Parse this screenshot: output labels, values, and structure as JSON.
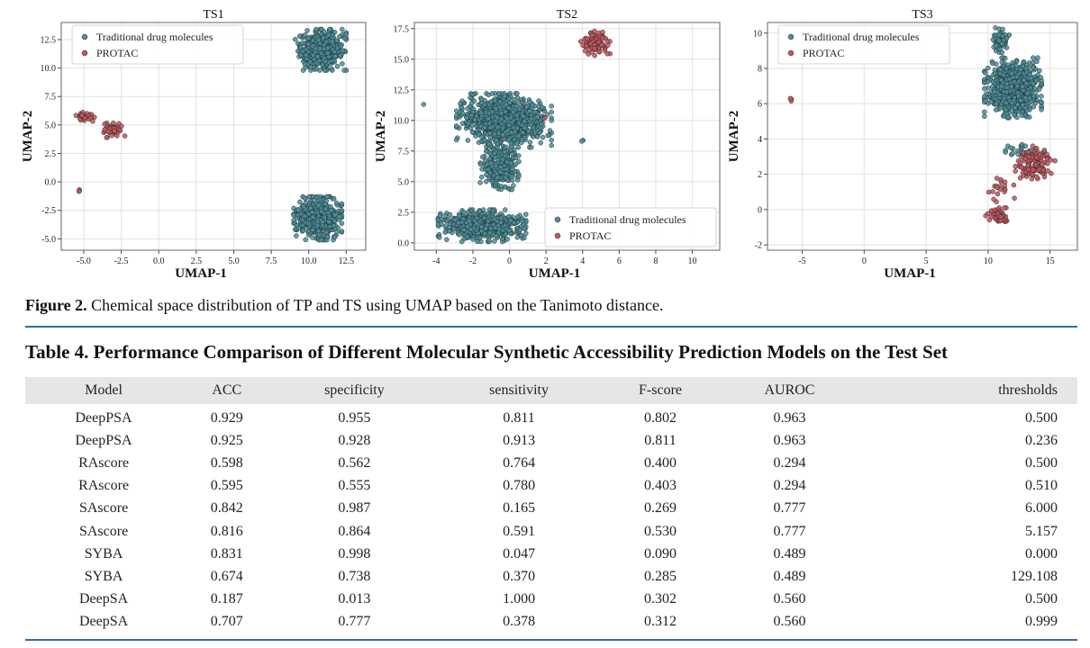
{
  "figure": {
    "caption_label": "Figure 2.",
    "caption_text": " Chemical space distribution of TP and TS using UMAP based on the Tanimoto distance."
  },
  "chart_data": [
    {
      "type": "scatter",
      "title": "TS1",
      "xlabel": "UMAP-1",
      "ylabel": "UMAP-2",
      "xlim": [
        -6.5,
        13.8
      ],
      "ylim": [
        -6.0,
        14.0
      ],
      "xticks": [
        "-5.0",
        "-2.5",
        "0.0",
        "2.5",
        "5.0",
        "7.5",
        "10.0",
        "12.5"
      ],
      "yticks": [
        "-5.0",
        "-2.5",
        "0.0",
        "2.5",
        "5.0",
        "7.5",
        "10.0",
        "12.5"
      ],
      "grid": true,
      "legend_position": "top-left",
      "series": [
        {
          "name": "Traditional drug molecules",
          "color": "#4e8e99",
          "clusters": [
            {
              "cx": 10.8,
              "cy": 11.6,
              "rx": 1.7,
              "ry": 1.8,
              "n": 620
            },
            {
              "cx": 10.6,
              "cy": -3.2,
              "rx": 1.6,
              "ry": 1.9,
              "n": 620
            }
          ]
        },
        {
          "name": "PROTAC",
          "color": "#c9545a",
          "clusters": [
            {
              "cx": -4.9,
              "cy": 5.7,
              "rx": 0.8,
              "ry": 0.5,
              "n": 28
            },
            {
              "cx": -3.0,
              "cy": 4.6,
              "rx": 0.8,
              "ry": 0.7,
              "n": 48
            },
            {
              "cx": -5.3,
              "cy": -0.8,
              "rx": 0.12,
              "ry": 0.15,
              "n": 3
            }
          ]
        }
      ]
    },
    {
      "type": "scatter",
      "title": "TS2",
      "xlabel": "UMAP-1",
      "ylabel": "UMAP-2",
      "xlim": [
        -5.2,
        11.5
      ],
      "ylim": [
        -0.6,
        18.0
      ],
      "xticks": [
        "-4",
        "-2",
        "0",
        "2",
        "4",
        "6",
        "8",
        "10"
      ],
      "yticks": [
        "0.0",
        "2.5",
        "5.0",
        "7.5",
        "10.0",
        "12.5",
        "15.0",
        "17.5"
      ],
      "grid": true,
      "legend_position": "bottom-right",
      "series": [
        {
          "name": "Traditional drug molecules",
          "color": "#4e8e99",
          "clusters": [
            {
              "cx": -0.3,
              "cy": 10.0,
              "rx": 2.6,
              "ry": 2.2,
              "n": 900
            },
            {
              "cx": -0.5,
              "cy": 6.3,
              "rx": 1.1,
              "ry": 2.1,
              "n": 260
            },
            {
              "cx": -1.5,
              "cy": 1.4,
              "rx": 2.4,
              "ry": 1.3,
              "n": 700
            },
            {
              "cx": -4.6,
              "cy": 11.3,
              "rx": 0.1,
              "ry": 0.1,
              "n": 1
            },
            {
              "cx": 4.0,
              "cy": 8.3,
              "rx": 0.12,
              "ry": 0.1,
              "n": 2
            }
          ]
        },
        {
          "name": "PROTAC",
          "color": "#c9545a",
          "clusters": [
            {
              "cx": 4.7,
              "cy": 16.3,
              "rx": 0.8,
              "ry": 1.0,
              "n": 80
            },
            {
              "cx": 2.0,
              "cy": 10.2,
              "rx": 0.1,
              "ry": 0.1,
              "n": 1
            }
          ]
        }
      ]
    },
    {
      "type": "scatter",
      "title": "TS3",
      "xlabel": "UMAP-1",
      "ylabel": "UMAP-2",
      "xlim": [
        -7.8,
        17.2
      ],
      "ylim": [
        -2.3,
        10.6
      ],
      "xticks": [
        "-5",
        "0",
        "5",
        "10",
        "15"
      ],
      "yticks": [
        "-2",
        "0",
        "2",
        "4",
        "6",
        "8",
        "10"
      ],
      "grid": true,
      "legend_position": "top-left",
      "series": [
        {
          "name": "Traditional drug molecules",
          "color": "#4e8e99",
          "clusters": [
            {
              "cx": 12.0,
              "cy": 6.9,
              "rx": 2.3,
              "ry": 1.7,
              "n": 800
            },
            {
              "cx": 11.0,
              "cy": 9.6,
              "rx": 0.7,
              "ry": 0.7,
              "n": 70
            },
            {
              "cx": 13.0,
              "cy": 3.3,
              "rx": 1.6,
              "ry": 0.6,
              "n": 30
            }
          ]
        },
        {
          "name": "PROTAC",
          "color": "#c9545a",
          "clusters": [
            {
              "cx": 13.8,
              "cy": 2.6,
              "rx": 1.6,
              "ry": 1.0,
              "n": 120
            },
            {
              "cx": 10.8,
              "cy": -0.4,
              "rx": 1.0,
              "ry": 0.5,
              "n": 70
            },
            {
              "cx": 11.2,
              "cy": 1.3,
              "rx": 1.2,
              "ry": 0.9,
              "n": 20
            },
            {
              "cx": -5.9,
              "cy": 6.3,
              "rx": 0.15,
              "ry": 0.2,
              "n": 3
            }
          ]
        }
      ]
    }
  ],
  "table": {
    "title": "Table 4. Performance Comparison of Different Molecular Synthetic Accessibility Prediction Models on the Test Set",
    "headers": [
      "Model",
      "ACC",
      "specificity",
      "sensitivity",
      "F-score",
      "AUROC",
      "thresholds"
    ],
    "rows": [
      [
        "DeepPSA",
        "0.929",
        "0.955",
        "0.811",
        "0.802",
        "0.963",
        "0.500"
      ],
      [
        "DeepPSA",
        "0.925",
        "0.928",
        "0.913",
        "0.811",
        "0.963",
        "0.236"
      ],
      [
        "RAscore",
        "0.598",
        "0.562",
        "0.764",
        "0.400",
        "0.294",
        "0.500"
      ],
      [
        "RAscore",
        "0.595",
        "0.555",
        "0.780",
        "0.403",
        "0.294",
        "0.510"
      ],
      [
        "SAscore",
        "0.842",
        "0.987",
        "0.165",
        "0.269",
        "0.777",
        "6.000"
      ],
      [
        "SAscore",
        "0.816",
        "0.864",
        "0.591",
        "0.530",
        "0.777",
        "5.157"
      ],
      [
        "SYBA",
        "0.831",
        "0.998",
        "0.047",
        "0.090",
        "0.489",
        "0.000"
      ],
      [
        "SYBA",
        "0.674",
        "0.738",
        "0.370",
        "0.285",
        "0.489",
        "129.108"
      ],
      [
        "DeepSA",
        "0.187",
        "0.013",
        "1.000",
        "0.302",
        "0.560",
        "0.500"
      ],
      [
        "DeepSA",
        "0.707",
        "0.777",
        "0.378",
        "0.312",
        "0.560",
        "0.999"
      ]
    ]
  }
}
